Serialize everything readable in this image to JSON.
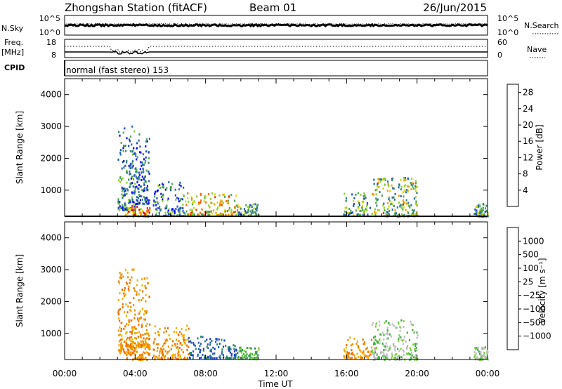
{
  "header": {
    "station": "Zhongshan Station (fitACF)",
    "beam": "Beam 01",
    "date": "26/Jun/2015"
  },
  "panels": {
    "sky": {
      "left_label": "N.Sky",
      "right_label": "N.Search",
      "left_ticks": [
        "10^5",
        "10^0"
      ],
      "right_ticks": [
        "10^5",
        "10^0"
      ]
    },
    "freq": {
      "left_label_1": "Freq.",
      "left_label_2": "[MHz]",
      "right_label": "Nave",
      "left_ticks": [
        "18",
        "8"
      ],
      "right_ticks": [
        "60",
        "0"
      ]
    },
    "cpid": {
      "label": "CPID",
      "text": "normal (fast stereo) 153"
    }
  },
  "chart_data": [
    {
      "type": "heatmap",
      "name": "power",
      "ylabel": "Slant Range [km]",
      "y_ticks": [
        "1000",
        "2000",
        "3000",
        "4000"
      ],
      "y_tick_values": [
        1000,
        2000,
        3000,
        4000
      ],
      "ylim": [
        180,
        4500
      ],
      "xlim_hours": [
        0,
        24
      ],
      "colorbar": {
        "label": "Power [dB]",
        "ticks": [
          "4",
          "8",
          "12",
          "16",
          "20",
          "24",
          "28"
        ],
        "tick_values": [
          4,
          8,
          12,
          16,
          20,
          24,
          28
        ],
        "range": [
          0,
          30
        ],
        "colors": [
          "#1010ff",
          "#1f4fbf",
          "#2b6f9f",
          "#3a8a6a",
          "#4fa84f",
          "#8fcf30",
          "#d8d800",
          "#f0a000",
          "#f07000",
          "#f04000",
          "#e01010",
          "#ff0000"
        ]
      },
      "regions": [
        {
          "t0": 3.0,
          "t1": 4.0,
          "r0": 400,
          "r1": 3050,
          "value": 8
        },
        {
          "t0": 3.4,
          "t1": 4.8,
          "r0": 200,
          "r1": 520,
          "value": 22
        },
        {
          "t0": 4.0,
          "t1": 4.8,
          "r0": 600,
          "r1": 2800,
          "value": 6
        },
        {
          "t0": 5.0,
          "t1": 6.8,
          "r0": 220,
          "r1": 1300,
          "value": 9
        },
        {
          "t0": 6.8,
          "t1": 9.8,
          "r0": 250,
          "r1": 950,
          "value": 20
        },
        {
          "t0": 9.8,
          "t1": 11.0,
          "r0": 220,
          "r1": 600,
          "value": 10
        },
        {
          "t0": 15.8,
          "t1": 17.3,
          "r0": 250,
          "r1": 950,
          "value": 10
        },
        {
          "t0": 17.4,
          "t1": 20.0,
          "r0": 200,
          "r1": 1450,
          "value": 14
        },
        {
          "t0": 23.2,
          "t1": 24.0,
          "r0": 200,
          "r1": 600,
          "value": 10
        }
      ]
    },
    {
      "type": "heatmap",
      "name": "velocity",
      "ylabel": "Slant Range [km]",
      "y_ticks": [
        "1000",
        "2000",
        "3000",
        "4000"
      ],
      "y_tick_values": [
        1000,
        2000,
        3000,
        4000
      ],
      "ylim": [
        180,
        4500
      ],
      "xlim_hours": [
        0,
        24
      ],
      "x_ticks": [
        "00:00",
        "04:00",
        "08:00",
        "12:00",
        "16:00",
        "20:00",
        "00:00"
      ],
      "x_tick_values": [
        0,
        4,
        8,
        12,
        16,
        20,
        24
      ],
      "xlabel": "Time UT",
      "colorbar": {
        "label": "Velocity [m s⁻¹]",
        "ticks": [
          "1000",
          "500",
          "100",
          "25",
          "−25",
          "−100",
          "−500",
          "−1000"
        ],
        "colors": [
          "#2040c8",
          "#2a60b0",
          "#2e8a6a",
          "#40b040",
          "#80d040",
          "#c0c0c0",
          "#c0c0c0",
          "#f0b000",
          "#f09000",
          "#f07000",
          "#f04000",
          "#e00000"
        ]
      },
      "regions": [
        {
          "t0": 3.0,
          "t1": 4.0,
          "r0": 400,
          "r1": 3050,
          "value": -100
        },
        {
          "t0": 3.4,
          "t1": 4.8,
          "r0": 200,
          "r1": 700,
          "value": -100
        },
        {
          "t0": 4.0,
          "t1": 4.8,
          "r0": 600,
          "r1": 2800,
          "value": -100
        },
        {
          "t0": 5.0,
          "t1": 7.0,
          "r0": 220,
          "r1": 1300,
          "value": -100
        },
        {
          "t0": 7.0,
          "t1": 9.8,
          "r0": 250,
          "r1": 950,
          "value": 300
        },
        {
          "t0": 9.8,
          "t1": 11.0,
          "r0": 220,
          "r1": 600,
          "value": 100
        },
        {
          "t0": 15.8,
          "t1": 17.4,
          "r0": 250,
          "r1": 950,
          "value": -100
        },
        {
          "t0": 17.4,
          "t1": 20.0,
          "r0": 200,
          "r1": 1450,
          "value": 25
        },
        {
          "t0": 23.2,
          "t1": 24.0,
          "r0": 200,
          "r1": 600,
          "value": 50
        }
      ]
    }
  ]
}
